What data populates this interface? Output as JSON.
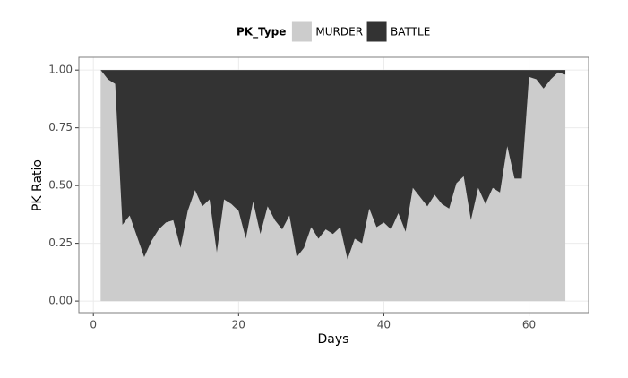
{
  "chart_data": {
    "type": "stacked_area",
    "x_label": "Days",
    "y_label": "PK Ratio",
    "legend_title": "PK_Type",
    "x": [
      1,
      2,
      3,
      4,
      5,
      6,
      7,
      8,
      9,
      10,
      11,
      12,
      13,
      14,
      15,
      16,
      17,
      18,
      19,
      20,
      21,
      22,
      23,
      24,
      25,
      26,
      27,
      28,
      29,
      30,
      31,
      32,
      33,
      34,
      35,
      36,
      37,
      38,
      39,
      40,
      41,
      42,
      43,
      44,
      45,
      46,
      47,
      48,
      49,
      50,
      51,
      52,
      53,
      54,
      55,
      56,
      57,
      58,
      59,
      60,
      61,
      62,
      63,
      64,
      65
    ],
    "series": [
      {
        "name": "MURDER",
        "color": "#cccccc",
        "values": [
          1.0,
          0.96,
          0.94,
          0.33,
          0.37,
          0.28,
          0.19,
          0.26,
          0.31,
          0.34,
          0.35,
          0.23,
          0.39,
          0.48,
          0.41,
          0.44,
          0.21,
          0.44,
          0.42,
          0.39,
          0.27,
          0.43,
          0.29,
          0.41,
          0.35,
          0.31,
          0.37,
          0.19,
          0.23,
          0.32,
          0.27,
          0.31,
          0.29,
          0.32,
          0.18,
          0.27,
          0.25,
          0.4,
          0.32,
          0.34,
          0.31,
          0.38,
          0.3,
          0.49,
          0.45,
          0.41,
          0.46,
          0.42,
          0.4,
          0.51,
          0.54,
          0.35,
          0.49,
          0.42,
          0.49,
          0.47,
          0.67,
          0.53,
          0.53,
          0.97,
          0.96,
          0.92,
          0.96,
          0.99,
          0.98
        ]
      },
      {
        "name": "BATTLE",
        "color": "#333333",
        "values": [
          0,
          0.04,
          0.06,
          0.67,
          0.63,
          0.72,
          0.81,
          0.74,
          0.69,
          0.66,
          0.65,
          0.77,
          0.61,
          0.52,
          0.59,
          0.56,
          0.79,
          0.56,
          0.58,
          0.61,
          0.73,
          0.57,
          0.71,
          0.59,
          0.65,
          0.69,
          0.63,
          0.81,
          0.77,
          0.68,
          0.73,
          0.69,
          0.71,
          0.68,
          0.82,
          0.73,
          0.75,
          0.6,
          0.68,
          0.66,
          0.69,
          0.62,
          0.7,
          0.51,
          0.55,
          0.59,
          0.54,
          0.58,
          0.6,
          0.49,
          0.46,
          0.65,
          0.51,
          0.58,
          0.51,
          0.53,
          0.33,
          0.47,
          0.47,
          0.03,
          0.04,
          0.08,
          0.04,
          0.01,
          0.02
        ]
      }
    ],
    "xlim": [
      -2,
      68.2
    ],
    "xticks": [
      0,
      20,
      40,
      60
    ],
    "ylim": [
      -0.05,
      1.055
    ],
    "yticks": [
      {
        "value": 0,
        "label": "0.00"
      },
      {
        "value": 0.25,
        "label": "0.25"
      },
      {
        "value": 0.5,
        "label": "0.50"
      },
      {
        "value": 0.75,
        "label": "0.75"
      },
      {
        "value": 1,
        "label": "1.00"
      }
    ],
    "grid": true,
    "legend": "top"
  }
}
